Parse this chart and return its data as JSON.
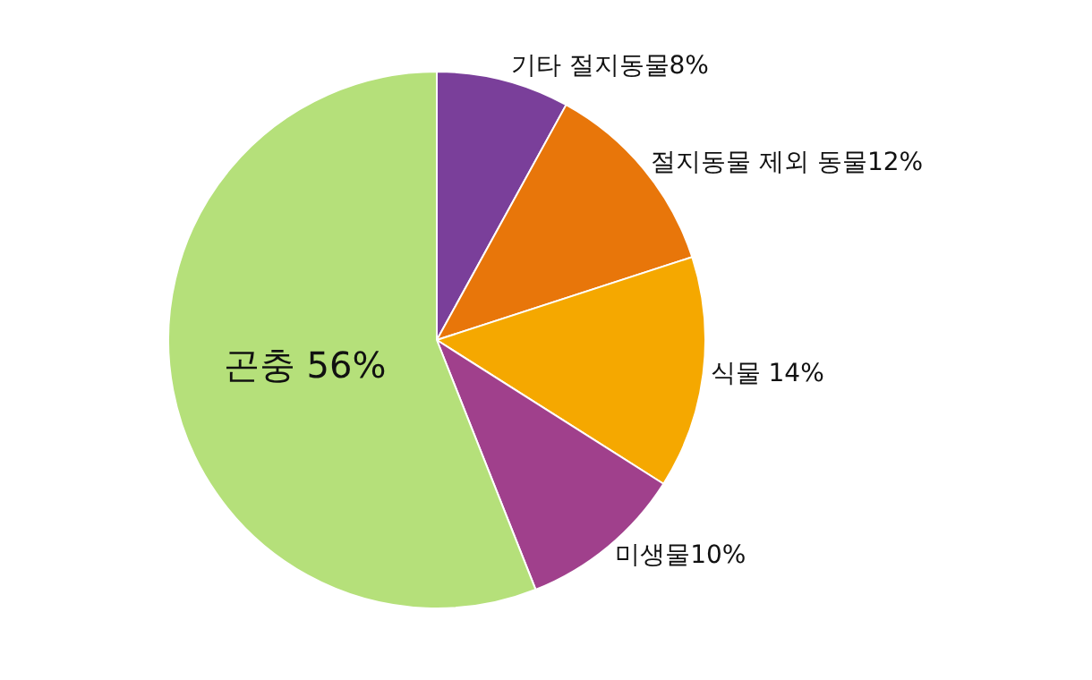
{
  "chart_data": {
    "type": "pie",
    "categories": [
      "기타 절지동물8%",
      "절지동물 제외 동물12%",
      "식물 14%",
      "미생물10%",
      "곤충 56%"
    ],
    "values": [
      8,
      12,
      14,
      10,
      56
    ],
    "colors": [
      "#7a3f9a",
      "#e8760a",
      "#f5a800",
      "#a0408c",
      "#b5e07a"
    ],
    "legend": false
  }
}
